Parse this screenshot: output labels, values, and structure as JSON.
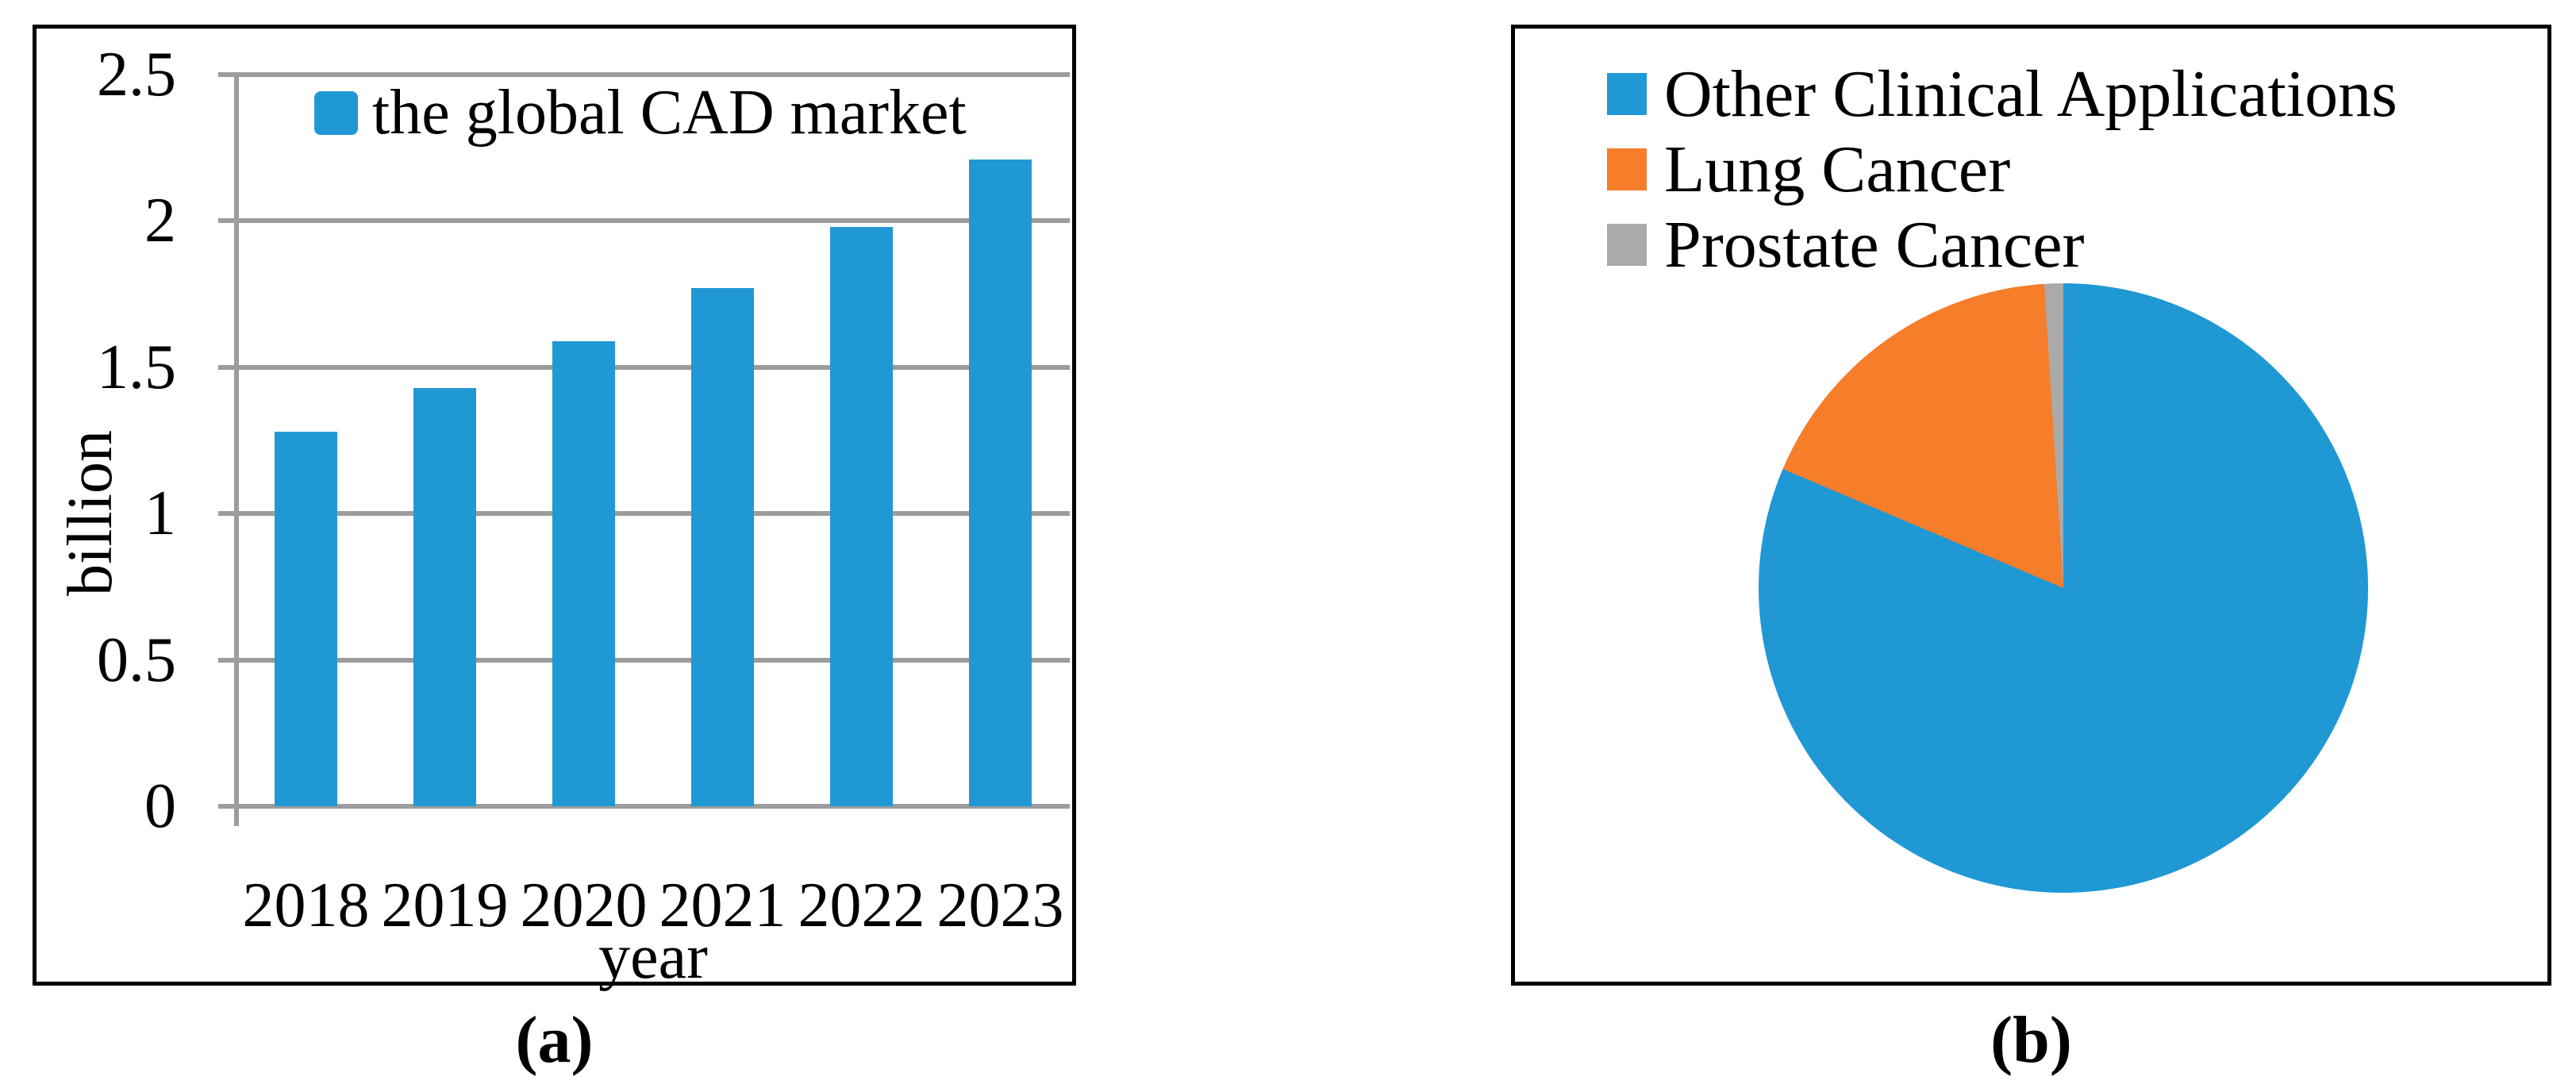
{
  "figure": {
    "background": "#ffffff",
    "border_color": "#000000",
    "gridline_color": "#9C9C9C",
    "caption_a": "(a)",
    "caption_b": "(b)"
  },
  "chart_data": [
    {
      "type": "bar",
      "panel": "a",
      "caption": "(a)",
      "legend": "the global CAD market",
      "legend_position": "top-center-inside",
      "categories": [
        "2018",
        "2019",
        "2020",
        "2021",
        "2022",
        "2023"
      ],
      "values": [
        1.28,
        1.43,
        1.59,
        1.77,
        1.98,
        2.21
      ],
      "xlabel": "year",
      "ylabel": "billion",
      "ylim": [
        0,
        2.5
      ],
      "ytick_step": 0.5,
      "ytick_labels": [
        "2.5",
        "2",
        "1.5",
        "1",
        "0.5",
        "0"
      ],
      "grid": true,
      "bar_color": "#2098D4",
      "gridline_color": "#9C9C9C"
    },
    {
      "type": "pie",
      "panel": "b",
      "caption": "(b)",
      "labels": [
        "Other Clinical Applications",
        "Lung Cancer",
        "Prostate Cancer"
      ],
      "values_percent": [
        81.4,
        17.6,
        1.0
      ],
      "colors": [
        "#2098D4",
        "#F67D2A",
        "#AAAAAA"
      ],
      "start_angle_deg": 0,
      "direction": "clockwise",
      "legend_position": "top-left-inside"
    }
  ]
}
